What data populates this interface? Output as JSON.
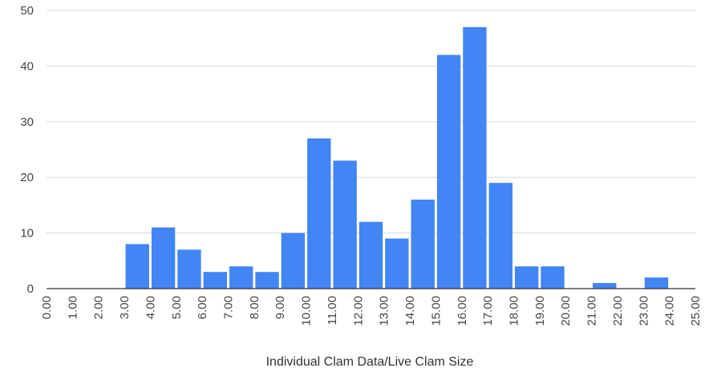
{
  "chart_data": {
    "type": "bar",
    "title": "",
    "xlabel": "Individual Clam Data/Live Clam Size",
    "ylabel": "",
    "ylim": [
      0,
      50
    ],
    "y_ticks": [
      "0",
      "10",
      "20",
      "30",
      "40",
      "50"
    ],
    "x_ticks": [
      "0.00",
      "1.00",
      "2.00",
      "3.00",
      "4.00",
      "5.00",
      "6.00",
      "7.00",
      "8.00",
      "9.00",
      "10.00",
      "11.00",
      "12.00",
      "13.00",
      "14.00",
      "15.00",
      "16.00",
      "17.00",
      "18.00",
      "19.00",
      "20.00",
      "21.00",
      "22.00",
      "23.00",
      "24.00",
      "25.00"
    ],
    "bin_starts": [
      0,
      1,
      2,
      3,
      4,
      5,
      6,
      7,
      8,
      9,
      10,
      11,
      12,
      13,
      14,
      15,
      16,
      17,
      18,
      19,
      20,
      21,
      22,
      23,
      24
    ],
    "values": [
      0,
      0,
      0,
      8,
      11,
      7,
      3,
      4,
      3,
      10,
      27,
      23,
      12,
      9,
      16,
      42,
      47,
      19,
      4,
      4,
      0,
      1,
      0,
      2,
      0
    ],
    "bar_color": "#4285f4",
    "grid": true,
    "legend": "none"
  }
}
